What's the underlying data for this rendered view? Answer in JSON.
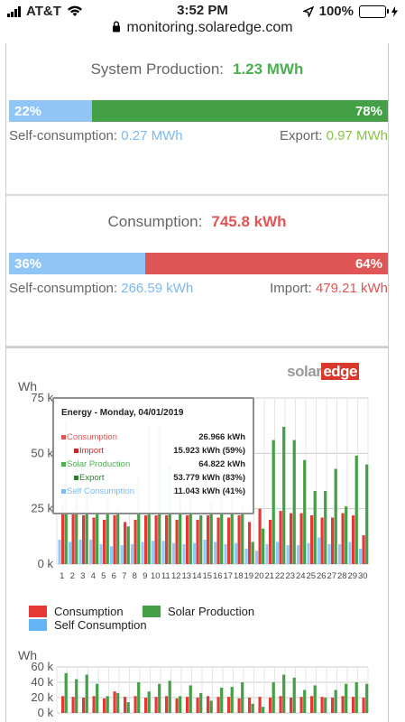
{
  "status_bar": {
    "carrier": "AT&T",
    "time": "3:52 PM",
    "battery": "100%"
  },
  "url": "monitoring.solaredge.com",
  "production": {
    "title": "System Production:",
    "value": "1.23 MWh",
    "left_pct": "22%",
    "right_pct": "78%",
    "left_fraction": 0.22,
    "left_label": "Self-consumption:",
    "left_value": "0.27 MWh",
    "right_label": "Export:",
    "right_value": "0.97 MWh"
  },
  "consumption": {
    "title": "Consumption:",
    "value": "745.8 kWh",
    "left_pct": "36%",
    "right_pct": "64%",
    "left_fraction": 0.36,
    "left_label": "Self-consumption:",
    "left_value": "266.59 kWh",
    "right_label": "Import:",
    "right_value": "479.21 kWh"
  },
  "colors": {
    "green": "#43a047",
    "blue": "#90c5f5",
    "red": "#e05555",
    "green_text": "#4caf50",
    "blue_text": "#7db9ee",
    "red_text": "#e05555"
  },
  "logo": "solaredge",
  "tooltip": {
    "title": "Energy - Monday, 04/01/2019",
    "rows": [
      {
        "label": "Consumption",
        "value": "26.966 kWh",
        "color": "#e05555"
      },
      {
        "label": "Import",
        "value": "15.923 kWh (59%)",
        "color": "#c62828"
      },
      {
        "label": "Solar Production",
        "value": "64.822 kWh",
        "color": "#4caf50"
      },
      {
        "label": "Export",
        "value": "53.779 kWh (83%)",
        "color": "#2e7d32"
      },
      {
        "label": "Self Consumption",
        "value": "11.043 kWh (41%)",
        "color": "#7db9ee"
      }
    ]
  },
  "legend": {
    "consumption": "Consumption",
    "solar": "Solar Production",
    "self": "Self Consumption"
  },
  "chart_data": [
    {
      "type": "bar",
      "ylabel": "Wh",
      "yticks": [
        "0 k",
        "25 k",
        "50 k",
        "75 k"
      ],
      "ylim": [
        0,
        75000
      ],
      "grid": true,
      "categories": [
        "1",
        "2",
        "3",
        "4",
        "5",
        "6",
        "7",
        "8",
        "9",
        "10",
        "11",
        "12",
        "13",
        "14",
        "15",
        "16",
        "17",
        "18",
        "19",
        "20",
        "21",
        "22",
        "23",
        "24",
        "25",
        "26",
        "27",
        "28",
        "29",
        "30"
      ],
      "series": [
        {
          "name": "Consumption",
          "values": [
            27000,
            24000,
            22000,
            21000,
            20000,
            22000,
            19000,
            20000,
            22000,
            22000,
            22000,
            20000,
            22000,
            20000,
            22000,
            21000,
            21000,
            22000,
            19000,
            25000,
            20000,
            24000,
            23000,
            23000,
            22000,
            21000,
            21000,
            23000,
            22000,
            13000
          ]
        },
        {
          "name": "Solar Production",
          "values": [
            64800,
            46000,
            40000,
            23000,
            30000,
            25000,
            17000,
            40000,
            63000,
            62000,
            45000,
            35000,
            30000,
            22000,
            28000,
            32000,
            34000,
            27000,
            10000,
            16000,
            56000,
            62000,
            56000,
            47000,
            33000,
            33000,
            43000,
            26000,
            49000,
            45000
          ]
        },
        {
          "name": "Self Consumption",
          "values": [
            11000,
            10000,
            11000,
            11000,
            9000,
            8000,
            8500,
            9000,
            10000,
            10500,
            10500,
            9500,
            9000,
            9500,
            11000,
            10000,
            9000,
            9500,
            7000,
            6000,
            9000,
            10000,
            8500,
            8500,
            9500,
            12000,
            9000,
            9000,
            10000,
            7000
          ]
        }
      ]
    },
    {
      "type": "bar",
      "ylabel": "Wh",
      "yticks": [
        "0 k",
        "20 k",
        "40 k",
        "60 k"
      ],
      "ylim": [
        0,
        60000
      ],
      "series": [
        {
          "name": "Consumption",
          "values": [
            22000,
            21000,
            20000,
            22000,
            19000,
            28000,
            21000,
            22000,
            20000,
            21000,
            22000,
            19000,
            21000,
            20000,
            22000,
            21000,
            21000,
            19000,
            20000,
            21000,
            20000,
            22000,
            20000,
            21000,
            22000,
            21000,
            20000,
            22000,
            21000,
            20000
          ]
        },
        {
          "name": "Solar Production",
          "values": [
            52000,
            44000,
            50000,
            38000,
            22000,
            26000,
            14000,
            40000,
            28000,
            38000,
            42000,
            22000,
            36000,
            26000,
            16000,
            33000,
            34000,
            40000,
            12000,
            8000,
            40000,
            50000,
            46000,
            30000,
            36000,
            20000,
            30000,
            38000,
            40000,
            38000
          ]
        }
      ]
    }
  ]
}
